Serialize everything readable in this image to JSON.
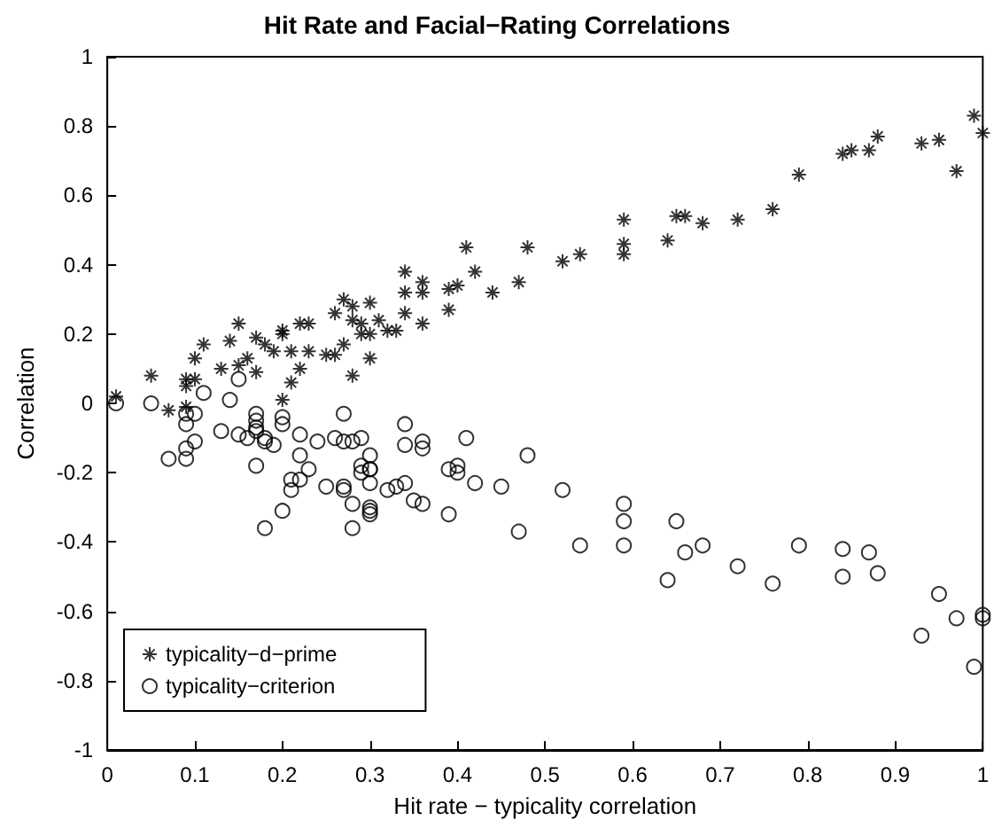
{
  "chart_data": {
    "type": "scatter",
    "title": "Hit Rate and Facial−Rating Correlations",
    "xlabel": "Hit rate − typicality correlation",
    "ylabel": "Correlation",
    "xlim": [
      0,
      1
    ],
    "xticks": [
      0,
      0.1,
      0.2,
      0.3,
      0.4,
      0.5,
      0.6,
      0.7,
      0.8,
      0.9,
      1
    ],
    "ylim": [
      -1,
      1
    ],
    "yticks": [
      -1,
      -0.8,
      -0.6,
      -0.4,
      -0.2,
      0,
      0.2,
      0.4,
      0.6,
      0.8,
      1
    ],
    "grid": false,
    "legend": "bottom left",
    "series": [
      {
        "name": "typicality−d−prime",
        "color": "#000000",
        "marker": "cross",
        "x": [
          0.01,
          0.05,
          0.07,
          0.09,
          0.09,
          0.09,
          0.1,
          0.11,
          0.1,
          0.13,
          0.14,
          0.15,
          0.15,
          0.16,
          0.17,
          0.17,
          0.18,
          0.19,
          0.2,
          0.2,
          0.21,
          0.2,
          0.21,
          0.22,
          0.22,
          0.23,
          0.23,
          0.25,
          0.26,
          0.27,
          0.26,
          0.27,
          0.28,
          0.28,
          0.29,
          0.3,
          0.3,
          0.28,
          0.29,
          0.32,
          0.31,
          0.59,
          0.59,
          0.59,
          0.54,
          0.52,
          0.48,
          0.47,
          0.44,
          0.42,
          0.41,
          0.4,
          0.39,
          0.39,
          0.36,
          0.36,
          0.36,
          0.34,
          0.34,
          0.34,
          0.33,
          0.3,
          0.64,
          0.65,
          0.66,
          0.68,
          0.72,
          0.76,
          0.79,
          0.84,
          0.85,
          0.87,
          0.88,
          0.93,
          0.95,
          0.97,
          0.99,
          1.0
        ],
        "values": [
          0.02,
          0.08,
          -0.02,
          0.07,
          0.05,
          -0.01,
          0.13,
          0.17,
          0.07,
          0.1,
          0.18,
          0.11,
          0.23,
          0.13,
          0.19,
          0.09,
          0.17,
          0.15,
          0.21,
          0.2,
          0.06,
          0.01,
          0.15,
          0.1,
          0.23,
          0.15,
          0.23,
          0.14,
          0.14,
          0.3,
          0.26,
          0.17,
          0.24,
          0.28,
          0.23,
          0.29,
          0.2,
          0.08,
          0.2,
          0.21,
          0.24,
          0.53,
          0.46,
          0.43,
          0.43,
          0.41,
          0.45,
          0.35,
          0.32,
          0.38,
          0.45,
          0.34,
          0.33,
          0.27,
          0.23,
          0.35,
          0.32,
          0.38,
          0.32,
          0.26,
          0.21,
          0.13,
          0.47,
          0.54,
          0.54,
          0.52,
          0.53,
          0.56,
          0.66,
          0.72,
          0.73,
          0.73,
          0.77,
          0.75,
          0.76,
          0.67,
          0.83,
          0.78
        ]
      },
      {
        "name": "typicality−criterion",
        "color": "#000000",
        "marker": "circle",
        "x": [
          0.01,
          0.05,
          0.07,
          0.09,
          0.09,
          0.09,
          0.09,
          0.1,
          0.1,
          0.11,
          0.13,
          0.14,
          0.15,
          0.15,
          0.16,
          0.17,
          0.17,
          0.17,
          0.17,
          0.17,
          0.18,
          0.18,
          0.19,
          0.2,
          0.2,
          0.18,
          0.2,
          0.21,
          0.21,
          0.22,
          0.22,
          0.22,
          0.23,
          0.24,
          0.25,
          0.26,
          0.27,
          0.27,
          0.27,
          0.27,
          0.28,
          0.28,
          0.28,
          0.29,
          0.29,
          0.29,
          0.3,
          0.3,
          0.3,
          0.3,
          0.3,
          0.32,
          0.33,
          0.34,
          0.34,
          0.36,
          0.36,
          0.41,
          0.39,
          0.4,
          0.4,
          0.42,
          0.45,
          0.39,
          0.34,
          0.35,
          0.36,
          0.3,
          0.3,
          0.48,
          0.47,
          0.52,
          0.54,
          0.59,
          0.59,
          0.59,
          0.64,
          0.65,
          0.66,
          0.68,
          0.72,
          0.76,
          0.79,
          0.84,
          0.84,
          0.87,
          0.88,
          0.93,
          0.95,
          0.97,
          0.99,
          1.0,
          1.0
        ],
        "values": [
          0.0,
          0.0,
          -0.16,
          -0.13,
          -0.16,
          -0.06,
          -0.03,
          -0.11,
          -0.03,
          0.03,
          -0.08,
          0.01,
          -0.09,
          0.07,
          -0.1,
          -0.03,
          -0.05,
          -0.08,
          -0.07,
          -0.18,
          -0.1,
          -0.11,
          -0.12,
          -0.04,
          -0.06,
          -0.36,
          -0.31,
          -0.25,
          -0.22,
          -0.15,
          -0.22,
          -0.09,
          -0.19,
          -0.11,
          -0.24,
          -0.1,
          -0.03,
          -0.25,
          -0.24,
          -0.11,
          -0.29,
          -0.36,
          -0.11,
          -0.2,
          -0.1,
          -0.18,
          -0.23,
          -0.19,
          -0.3,
          -0.15,
          -0.19,
          -0.25,
          -0.24,
          -0.06,
          -0.12,
          -0.11,
          -0.13,
          -0.1,
          -0.19,
          -0.18,
          -0.2,
          -0.23,
          -0.24,
          -0.32,
          -0.23,
          -0.28,
          -0.29,
          -0.31,
          -0.32,
          -0.15,
          -0.37,
          -0.25,
          -0.41,
          -0.29,
          -0.34,
          -0.41,
          -0.51,
          -0.34,
          -0.43,
          -0.41,
          -0.47,
          -0.52,
          -0.41,
          -0.42,
          -0.5,
          -0.43,
          -0.49,
          -0.67,
          -0.55,
          -0.62,
          -0.76,
          -0.61,
          -0.62
        ]
      }
    ]
  }
}
